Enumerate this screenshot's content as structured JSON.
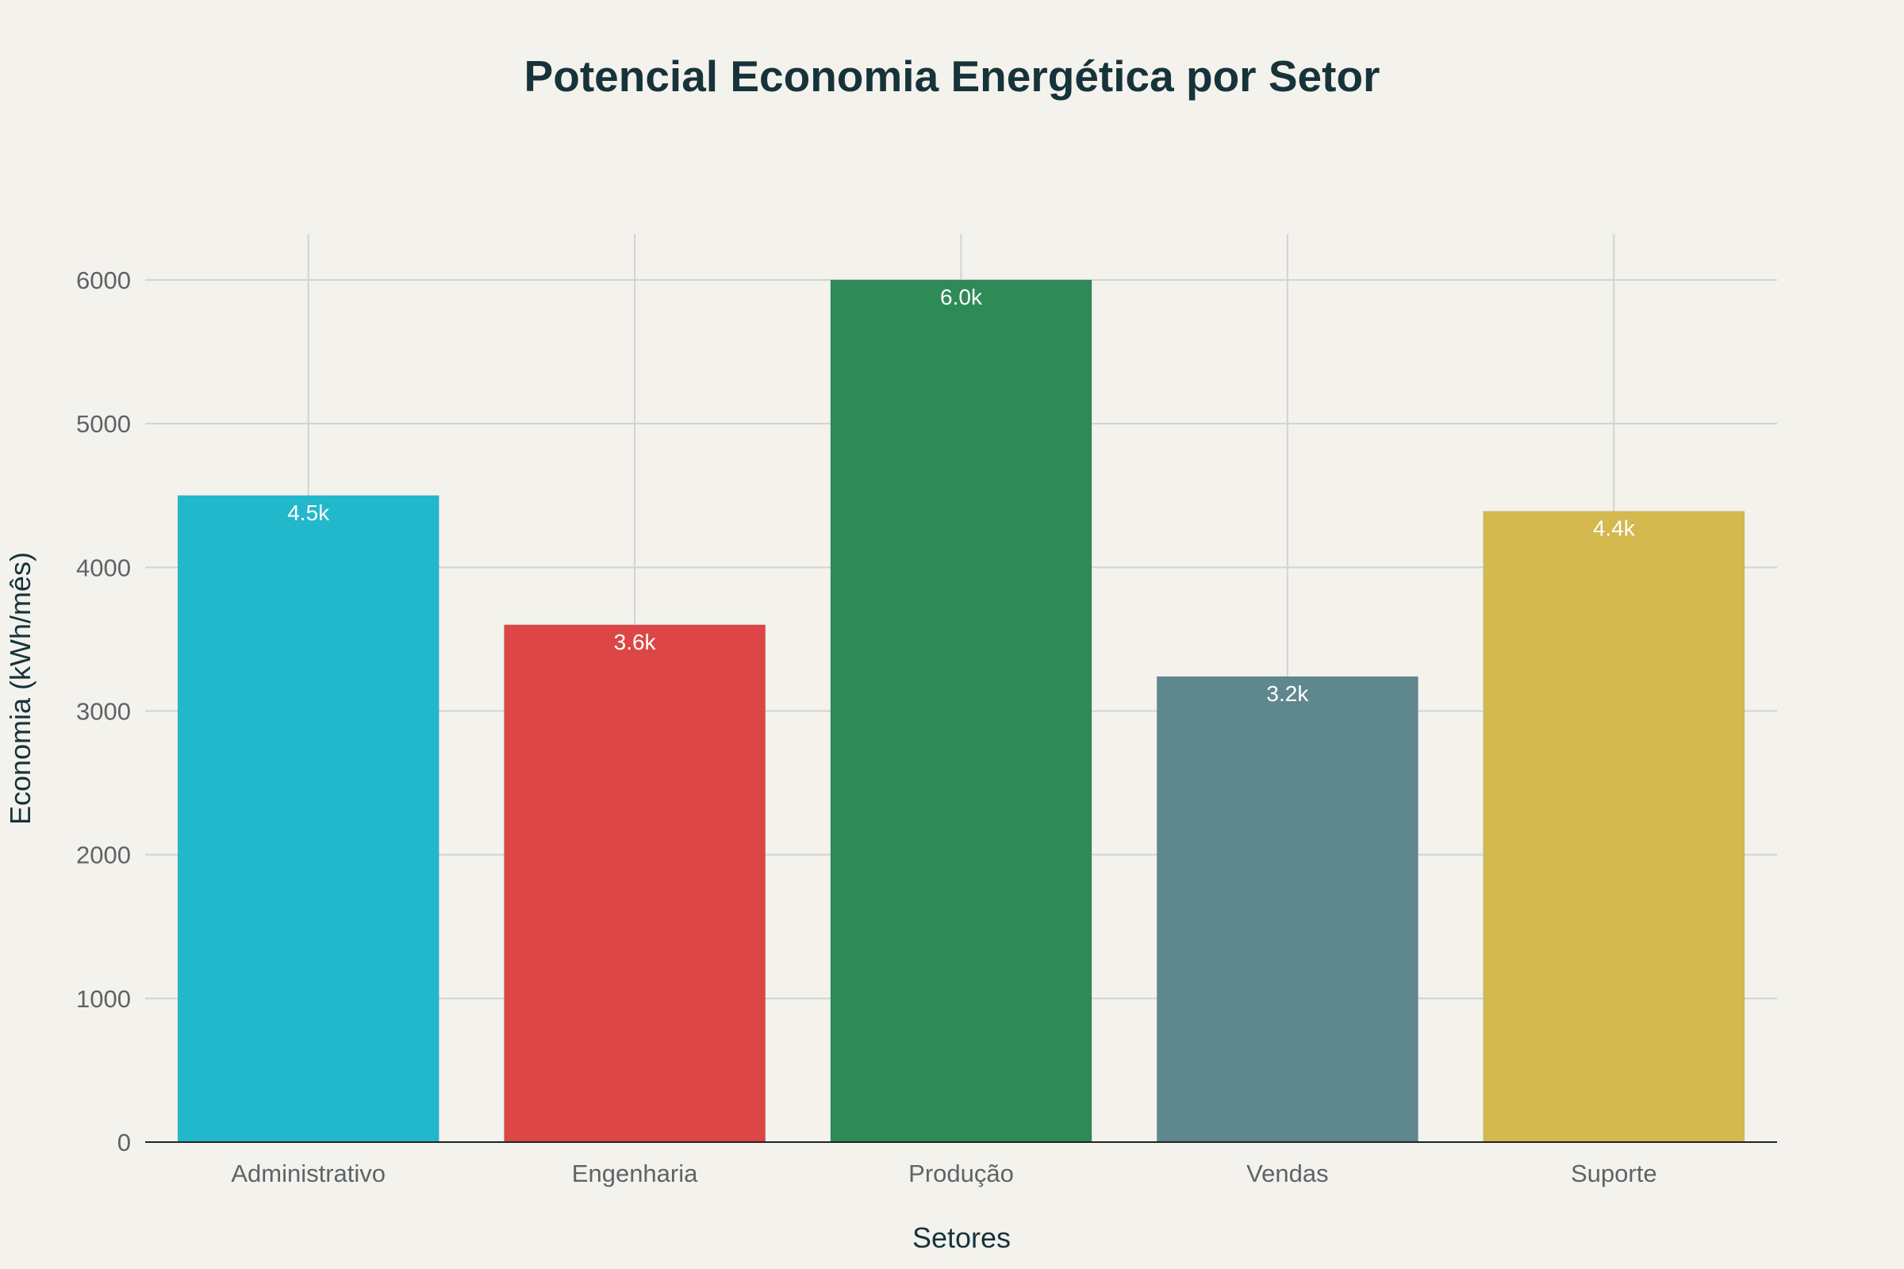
{
  "chart_data": {
    "type": "bar",
    "title": "Potencial Economia Energética por Setor",
    "xlabel": "Setores",
    "ylabel": "Economia (kWh/mês)",
    "categories": [
      "Administrativo",
      "Engenharia",
      "Produção",
      "Vendas",
      "Suporte"
    ],
    "values": [
      4500,
      3600,
      6000,
      3240,
      4390
    ],
    "data_labels": [
      "4.5k",
      "3.6k",
      "6.0k",
      "3.2k",
      "4.4k"
    ],
    "colors": [
      "#21b8cc",
      "#dc4646",
      "#2e8a57",
      "#5e888d",
      "#d3b94e"
    ],
    "ylim": [
      0,
      6300
    ],
    "yticks": [
      0,
      1000,
      2000,
      3000,
      4000,
      5000,
      6000
    ],
    "grid": true,
    "legend": "none"
  }
}
